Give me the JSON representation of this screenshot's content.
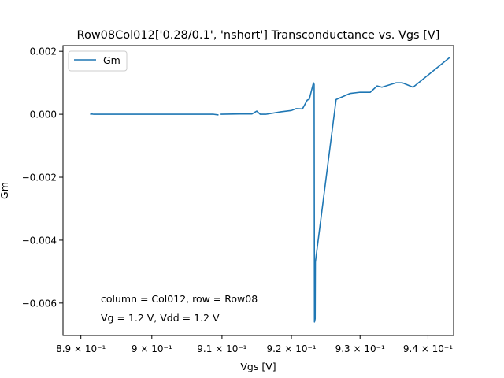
{
  "chart_data": {
    "type": "line",
    "title": "Row08Col012['0.28/0.1', 'nshort'] Transconductance vs. Vgs [V]",
    "xlabel": "Vgs [V]",
    "ylabel": "Gm",
    "xscale": "log",
    "xlim": [
      0.8875,
      0.9438
    ],
    "ylim": [
      -0.00703,
      0.00218
    ],
    "xticks": [
      {
        "value": 0.89,
        "label": "8.9 × 10⁻¹"
      },
      {
        "value": 0.9,
        "label": "9 × 10⁻¹"
      },
      {
        "value": 0.91,
        "label": "9.1 × 10⁻¹"
      },
      {
        "value": 0.92,
        "label": "9.2 × 10⁻¹"
      },
      {
        "value": 0.93,
        "label": "9.3 × 10⁻¹"
      },
      {
        "value": 0.94,
        "label": "9.4 × 10⁻¹"
      }
    ],
    "yticks": [
      {
        "value": 0.002,
        "label": "0.002"
      },
      {
        "value": 0.0,
        "label": "0.000"
      },
      {
        "value": -0.002,
        "label": "−0.002"
      },
      {
        "value": -0.004,
        "label": "−0.004"
      },
      {
        "value": -0.006,
        "label": "−0.006"
      }
    ],
    "legend": {
      "position": "top-left"
    },
    "grid": false,
    "series": [
      {
        "name": "Gm",
        "color": "#1f77b4",
        "segments": [
          [
            [
              0.8913,
              0.0
            ],
            [
              0.8915,
              1e-05
            ],
            [
              0.8918,
              0.0
            ],
            [
              0.8925,
              0.0
            ],
            [
              0.895,
              0.0
            ],
            [
              0.9,
              0.0
            ],
            [
              0.905,
              0.0
            ],
            [
              0.9088,
              0.0
            ],
            [
              0.9095,
              -2e-05
            ]
          ],
          [
            [
              0.9098,
              0.0
            ],
            [
              0.9125,
              1e-05
            ],
            [
              0.9143,
              1e-05
            ],
            [
              0.915,
              0.0001
            ],
            [
              0.9155,
              0.0
            ],
            [
              0.9163,
              0.0
            ],
            [
              0.9185,
              8e-05
            ],
            [
              0.92,
              0.00012
            ],
            [
              0.9207,
              0.00018
            ],
            [
              0.9216,
              0.00017
            ],
            [
              0.9223,
              0.00045
            ],
            [
              0.9226,
              0.00048
            ],
            [
              0.9232,
              0.001
            ],
            [
              0.9233,
              0.00095
            ],
            [
              0.92335,
              -0.0066
            ],
            [
              0.92345,
              -0.0065
            ],
            [
              0.92348,
              -0.0047
            ],
            [
              0.9265,
              0.00047
            ],
            [
              0.9285,
              0.00066
            ],
            [
              0.93,
              0.0007
            ],
            [
              0.9315,
              0.0007
            ],
            [
              0.9325,
              0.0009
            ],
            [
              0.9332,
              0.00086
            ],
            [
              0.9353,
              0.001
            ],
            [
              0.9362,
              0.001
            ],
            [
              0.9378,
              0.00086
            ],
            [
              0.9432,
              0.0018
            ]
          ]
        ]
      }
    ],
    "annotations": [
      "column = Col012, row = Row08",
      "Vg = 1.2 V, Vdd = 1.2 V"
    ]
  }
}
